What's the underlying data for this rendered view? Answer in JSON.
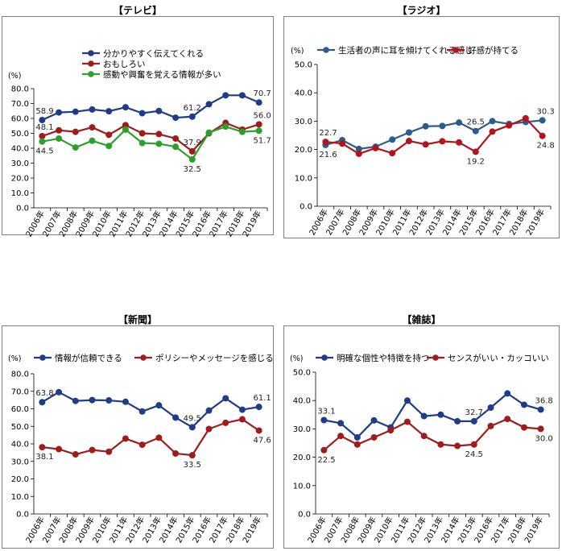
{
  "chart_data": [
    {
      "type": "line",
      "title": "【テレビ】",
      "unit_label": "(%)",
      "ylim": [
        0,
        80
      ],
      "yticks": [
        "0.0",
        "10.0",
        "20.0",
        "30.0",
        "40.0",
        "50.0",
        "60.0",
        "70.0",
        "80.0"
      ],
      "categories": [
        "2006年",
        "2007年",
        "2008年",
        "2009年",
        "2010年",
        "2011年",
        "2012年",
        "2013年",
        "2014年",
        "2015年",
        "2016年",
        "2017年",
        "2018年",
        "2019年"
      ],
      "legend_position": "top-left",
      "series": [
        {
          "name": "分かりやすく伝えてくれる",
          "color": "#1f3c88",
          "values": [
            58.9,
            64.0,
            64.5,
            66.0,
            64.8,
            67.5,
            63.5,
            65.0,
            60.5,
            61.2,
            69.5,
            75.5,
            75.5,
            70.7
          ],
          "labels": [
            "58.9",
            "",
            "",
            "",
            "",
            "",
            "",
            "",
            "",
            "61.2",
            "",
            "",
            "",
            "70.7"
          ]
        },
        {
          "name": "おもしろい",
          "color": "#a01c1c",
          "values": [
            48.1,
            52.0,
            51.0,
            54.0,
            49.0,
            55.5,
            50.0,
            49.5,
            46.5,
            37.9,
            50.0,
            57.0,
            52.5,
            56.0
          ],
          "labels": [
            "48.1",
            "",
            "",
            "",
            "",
            "",
            "",
            "",
            "",
            "37.9",
            "",
            "",
            "",
            "56.0"
          ]
        },
        {
          "name": "感動や興奮を覚える情報が多い",
          "color": "#2ca02c",
          "values": [
            44.5,
            46.5,
            40.5,
            45.0,
            41.5,
            52.5,
            43.5,
            43.0,
            41.0,
            32.5,
            50.5,
            54.5,
            51.0,
            51.7
          ],
          "labels": [
            "44.5",
            "",
            "",
            "",
            "",
            "",
            "",
            "",
            "",
            "32.5",
            "",
            "",
            "",
            "51.7"
          ]
        }
      ]
    },
    {
      "type": "line",
      "title": "【ラジオ】",
      "unit_label": "(%)",
      "ylim": [
        0,
        50
      ],
      "yticks": [
        "0.0",
        "10.0",
        "20.0",
        "30.0",
        "40.0",
        "50.0"
      ],
      "categories": [
        "2006年",
        "2007年",
        "2008年",
        "2009年",
        "2010年",
        "2011年",
        "2012年",
        "2013年",
        "2014年",
        "2015年",
        "2016年",
        "2017年",
        "2018年",
        "2019年"
      ],
      "legend_position": "top",
      "series": [
        {
          "name": "生活者の声に耳を傾けてくれる感じ",
          "color": "#2e5c8a",
          "values": [
            21.6,
            23.3,
            20.2,
            21.0,
            23.5,
            26.0,
            28.2,
            28.3,
            29.5,
            26.5,
            30.0,
            29.0,
            29.7,
            30.3
          ],
          "labels": [
            "21.6",
            "",
            "",
            "",
            "",
            "",
            "",
            "",
            "",
            "26.5",
            "",
            "",
            "",
            "30.3"
          ]
        },
        {
          "name": "好感が持てる",
          "color": "#b3141c",
          "values": [
            22.7,
            22.1,
            18.5,
            20.5,
            18.7,
            23.0,
            21.8,
            22.9,
            22.5,
            19.2,
            26.3,
            28.5,
            31.0,
            24.8
          ],
          "labels": [
            "22.7",
            "",
            "",
            "",
            "",
            "",
            "",
            "",
            "",
            "19.2",
            "",
            "",
            "",
            "24.8"
          ]
        }
      ]
    },
    {
      "type": "line",
      "title": "【新聞】",
      "unit_label": "(%)",
      "ylim": [
        0,
        80
      ],
      "yticks": [
        "0.0",
        "10.0",
        "20.0",
        "30.0",
        "40.0",
        "50.0",
        "60.0",
        "70.0",
        "80.0"
      ],
      "categories": [
        "2006年",
        "2007年",
        "2008年",
        "2009年",
        "2010年",
        "2011年",
        "2012年",
        "2013年",
        "2014年",
        "2015年",
        "2016年",
        "2017年",
        "2018年",
        "2019年"
      ],
      "legend_position": "top",
      "series": [
        {
          "name": "情報が信頼できる",
          "color": "#1f3c88",
          "values": [
            63.8,
            69.5,
            64.5,
            65.0,
            64.8,
            64.0,
            58.5,
            62.0,
            55.0,
            49.5,
            59.0,
            66.0,
            59.5,
            61.1
          ],
          "labels": [
            "63.8",
            "",
            "",
            "",
            "",
            "",
            "",
            "",
            "",
            "49.5",
            "",
            "",
            "",
            "61.1"
          ]
        },
        {
          "name": "ポリシーやメッセージを感じる",
          "color": "#a01c1c",
          "values": [
            38.1,
            37.0,
            34.0,
            36.5,
            35.5,
            43.0,
            39.5,
            43.5,
            34.5,
            33.5,
            48.5,
            52.0,
            54.0,
            47.6
          ],
          "labels": [
            "38.1",
            "",
            "",
            "",
            "",
            "",
            "",
            "",
            "",
            "33.5",
            "",
            "",
            "",
            "47.6"
          ]
        }
      ]
    },
    {
      "type": "line",
      "title": "【雑誌】",
      "unit_label": "(%)",
      "ylim": [
        0,
        50
      ],
      "yticks": [
        "0.0",
        "10.0",
        "20.0",
        "30.0",
        "40.0",
        "50.0"
      ],
      "categories": [
        "2006年",
        "2007年",
        "2008年",
        "2009年",
        "2010年",
        "2011年",
        "2012年",
        "2013年",
        "2014年",
        "2015年",
        "2016年",
        "2017年",
        "2018年",
        "2019年"
      ],
      "legend_position": "top",
      "series": [
        {
          "name": "明確な個性や特徴を持つ",
          "color": "#1f3c88",
          "values": [
            33.1,
            32.0,
            27.0,
            33.0,
            30.5,
            40.0,
            34.5,
            35.0,
            32.7,
            32.7,
            37.5,
            42.5,
            38.5,
            36.8
          ],
          "labels": [
            "33.1",
            "",
            "",
            "",
            "",
            "",
            "",
            "",
            "",
            "32.7",
            "",
            "",
            "",
            "36.8"
          ]
        },
        {
          "name": "センスがいい・カッコいい",
          "color": "#a01c1c",
          "values": [
            22.5,
            27.5,
            24.5,
            27.0,
            29.5,
            32.5,
            27.5,
            24.5,
            24.0,
            24.5,
            31.0,
            33.5,
            30.5,
            30.0
          ],
          "labels": [
            "22.5",
            "",
            "",
            "",
            "",
            "",
            "",
            "",
            "",
            "24.5",
            "",
            "",
            "",
            "30.0"
          ]
        }
      ]
    }
  ]
}
